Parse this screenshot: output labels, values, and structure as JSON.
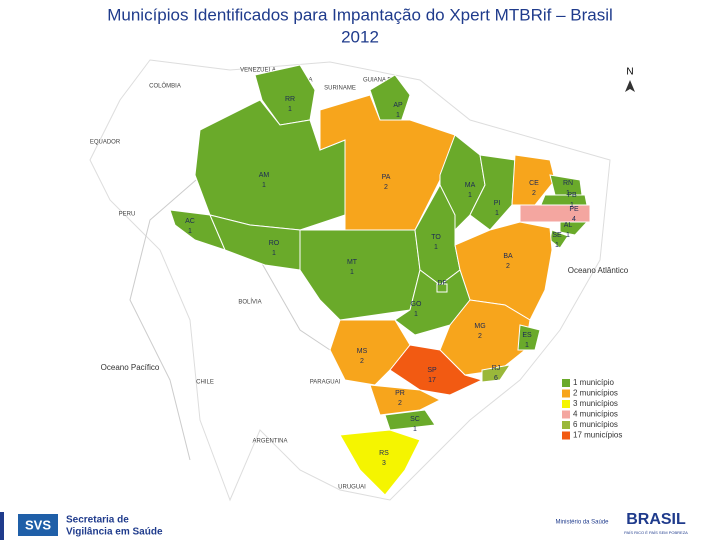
{
  "title": "Municípios Identificados para Impantação do Xpert MTBRif – Brasil 2012",
  "compass": "N",
  "countries": [
    "VENEZUELA",
    "COLÔMBIA",
    "GUYANA",
    "SURINAME",
    "GUIANA FR.",
    "EQUADOR",
    "PERU",
    "BOLÍVIA",
    "CHILE",
    "PARAGUAI",
    "ARGENTINA",
    "URUGUAI"
  ],
  "oceans": [
    "Oceano Atlântico",
    "Oceano Pacífico"
  ],
  "states": [
    {
      "abbr": "RR",
      "count": 1
    },
    {
      "abbr": "AP",
      "count": 1
    },
    {
      "abbr": "AM",
      "count": 1
    },
    {
      "abbr": "PA",
      "count": 2
    },
    {
      "abbr": "MA",
      "count": 1
    },
    {
      "abbr": "PI",
      "count": 1
    },
    {
      "abbr": "CE",
      "count": 2
    },
    {
      "abbr": "RN",
      "count": 1
    },
    {
      "abbr": "PB",
      "count": 1
    },
    {
      "abbr": "PE",
      "count": 4
    },
    {
      "abbr": "AL",
      "count": 1
    },
    {
      "abbr": "SE",
      "count": 1
    },
    {
      "abbr": "AC",
      "count": 1
    },
    {
      "abbr": "RO",
      "count": 1
    },
    {
      "abbr": "MT",
      "count": 1
    },
    {
      "abbr": "TO",
      "count": 1
    },
    {
      "abbr": "BA",
      "count": 2
    },
    {
      "abbr": "GO",
      "count": 1
    },
    {
      "abbr": "DF",
      "count": 1
    },
    {
      "abbr": "MG",
      "count": 2
    },
    {
      "abbr": "ES",
      "count": 1
    },
    {
      "abbr": "MS",
      "count": 2
    },
    {
      "abbr": "SP",
      "count": 17
    },
    {
      "abbr": "RJ",
      "count": 6
    },
    {
      "abbr": "PR",
      "count": 2
    },
    {
      "abbr": "SC",
      "count": 1
    },
    {
      "abbr": "RS",
      "count": 3
    }
  ],
  "legend": [
    {
      "count": 1,
      "label": "1 município",
      "color": "#6aaa2a"
    },
    {
      "count": 2,
      "label": "2 municípios",
      "color": "#f7a51c"
    },
    {
      "count": 3,
      "label": "3 municípios",
      "color": "#f5f500"
    },
    {
      "count": 4,
      "label": "4 municípios",
      "color": "#f4a6a0"
    },
    {
      "count": 6,
      "label": "6 municípios",
      "color": "#9ab83a"
    },
    {
      "count": 17,
      "label": "17 municípios",
      "color": "#f25a12"
    }
  ],
  "footer": {
    "logo": "SVS",
    "secretaria": "Secretaria de",
    "vigilancia": "Vigilância em Saúde",
    "ministerio": "Ministério da Saúde",
    "brasil": "BRASIL",
    "slogan": "PAÍS RICO É PAÍS SEM POBREZA"
  }
}
